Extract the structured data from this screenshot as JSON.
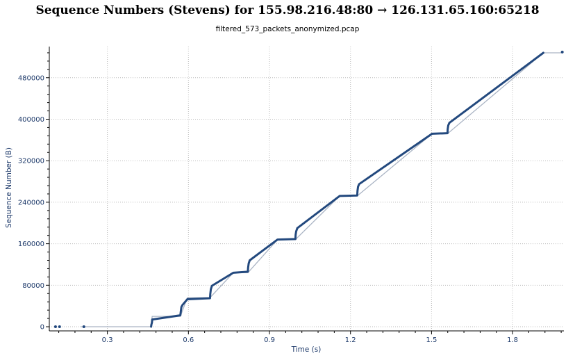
{
  "title": "Sequence Numbers (Stevens) for 155.98.216.48:80 → 126.131.65.160:65218",
  "subtitle": "filtered_573_packets_anonymized.pcap",
  "colors": {
    "series": "#23497e",
    "ack": "#aab4c4",
    "text": "#1f3b6b",
    "grid": "#bbbbbb"
  },
  "chart_data": {
    "type": "line",
    "title": "Sequence Numbers (Stevens) for 155.98.216.48:80 → 126.131.65.160:65218",
    "subtitle": "filtered_573_packets_anonymized.pcap",
    "xlabel": "Time (s)",
    "ylabel": "Sequence Number (B)",
    "xlim": [
      0.085,
      1.99
    ],
    "ylim": [
      -8000,
      540000
    ],
    "x_ticks": [
      0.3,
      0.6,
      0.9,
      1.2,
      1.5,
      1.8
    ],
    "x_tick_labels": [
      "0.3",
      "0.6",
      "0.9",
      "1.2",
      "1.5",
      "1.8"
    ],
    "y_ticks": [
      0,
      80000,
      160000,
      240000,
      320000,
      400000,
      480000
    ],
    "y_tick_labels": [
      "0",
      "80000",
      "160000",
      "240000",
      "320000",
      "400000",
      "480000"
    ],
    "grid": true,
    "series": [
      {
        "style": "line",
        "points": [
          [
            0.462,
            0
          ],
          [
            0.463,
            4000
          ],
          [
            0.465,
            8000
          ],
          [
            0.466,
            14000
          ],
          [
            0.57,
            22000
          ],
          [
            0.572,
            30000
          ],
          [
            0.574,
            38000
          ],
          [
            0.578,
            42000
          ],
          [
            0.596,
            53000
          ],
          [
            0.68,
            55000
          ],
          [
            0.681,
            63000
          ],
          [
            0.683,
            72000
          ],
          [
            0.687,
            79000
          ],
          [
            0.766,
            104000
          ],
          [
            0.82,
            106000
          ],
          [
            0.821,
            114000
          ],
          [
            0.823,
            122000
          ],
          [
            0.827,
            128000
          ],
          [
            0.93,
            168000
          ],
          [
            0.996,
            169000
          ],
          [
            0.997,
            177000
          ],
          [
            0.999,
            184000
          ],
          [
            1.003,
            190000
          ],
          [
            1.16,
            252000
          ],
          [
            1.225,
            253000
          ],
          [
            1.226,
            262000
          ],
          [
            1.228,
            270000
          ],
          [
            1.232,
            275000
          ],
          [
            1.502,
            372000
          ],
          [
            1.559,
            373000
          ],
          [
            1.56,
            381000
          ],
          [
            1.562,
            388000
          ],
          [
            1.566,
            393000
          ],
          [
            1.914,
            528000
          ]
        ]
      },
      {
        "style": "dots",
        "points": [
          [
            0.108,
            0
          ],
          [
            0.123,
            0
          ],
          [
            0.213,
            0
          ],
          [
            1.984,
            529500
          ]
        ]
      },
      {
        "style": "ack",
        "points": [
          [
            0.2,
            0
          ],
          [
            0.46,
            0
          ],
          [
            0.466,
            20000
          ],
          [
            0.57,
            20000
          ],
          [
            0.596,
            56000
          ],
          [
            0.68,
            56000
          ],
          [
            0.766,
            104000
          ],
          [
            0.82,
            104000
          ],
          [
            0.93,
            168000
          ],
          [
            0.996,
            168000
          ],
          [
            1.16,
            252000
          ],
          [
            1.225,
            252000
          ],
          [
            1.502,
            372000
          ],
          [
            1.559,
            372000
          ],
          [
            1.914,
            528000
          ],
          [
            1.98,
            528000
          ]
        ]
      }
    ]
  }
}
